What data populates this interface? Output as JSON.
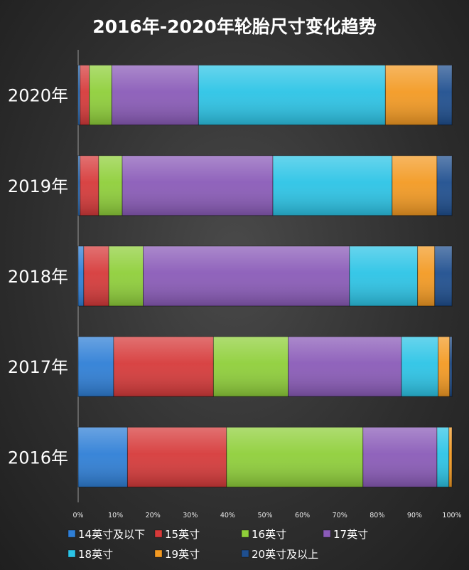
{
  "chart_data": {
    "type": "bar",
    "orientation": "horizontal",
    "stacked": "percent",
    "title": "2016年-2020年轮胎尺寸变化趋势",
    "xlabel": "",
    "ylabel": "",
    "categories": [
      "2020年",
      "2019年",
      "2018年",
      "2017年",
      "2016年"
    ],
    "xlim": [
      0,
      100
    ],
    "x_ticks": [
      "0%",
      "10%",
      "20%",
      "30%",
      "40%",
      "50%",
      "60%",
      "70%",
      "80%",
      "90%",
      "100%"
    ],
    "grid": false,
    "legend_position": "bottom",
    "series": [
      {
        "name": "14英寸及以下",
        "color": "#2f7fd6",
        "values": [
          0.5,
          0.5,
          1.5,
          9.5,
          13.2
        ]
      },
      {
        "name": "15英寸",
        "color": "#d63a3a",
        "values": [
          2.5,
          5.0,
          6.7,
          26.7,
          26.5
        ]
      },
      {
        "name": "16英寸",
        "color": "#8fcf3a",
        "values": [
          6.0,
          6.3,
          9.2,
          20.0,
          36.5
        ]
      },
      {
        "name": "17英寸",
        "color": "#8a5bb8",
        "values": [
          23.2,
          40.3,
          55.2,
          30.3,
          19.8
        ]
      },
      {
        "name": "18英寸",
        "color": "#2cc4e6",
        "values": [
          50.0,
          31.9,
          18.2,
          9.8,
          3.2
        ]
      },
      {
        "name": "19英寸",
        "color": "#f39a23",
        "values": [
          14.0,
          12.0,
          4.6,
          3.1,
          0.8
        ]
      },
      {
        "name": "20英寸及以上",
        "color": "#1f4f8f",
        "values": [
          3.8,
          4.0,
          4.6,
          0.6,
          0.0
        ]
      }
    ]
  }
}
